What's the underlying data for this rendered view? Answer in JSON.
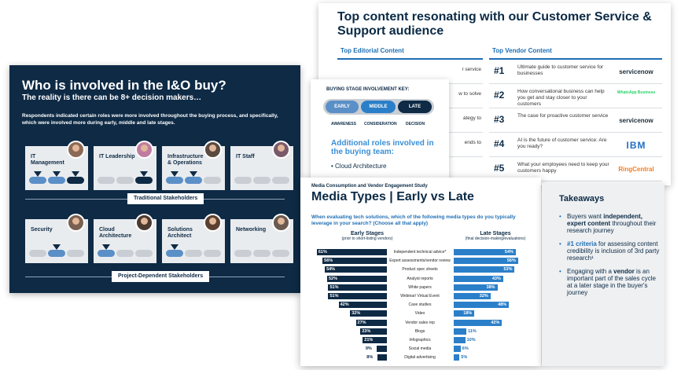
{
  "top_content": {
    "title": "Top content resonating with our Customer Service & Support audience",
    "editorial_heading": "Top Editorial Content",
    "vendor_heading": "Top Vendor Content",
    "editorial_rows": [
      "r service",
      "w to solve",
      "ategy to",
      "ends to",
      ""
    ],
    "vendor_rows": [
      {
        "num": "#1",
        "text": "Ultimate guide to customer service for businesses",
        "logo": "servicenow",
        "logo_color": "#1d2d3a"
      },
      {
        "num": "#2",
        "text": "How conversational business can help you get and stay closer to your customers",
        "logo": "WhatsApp Business",
        "logo_color": "#25d366"
      },
      {
        "num": "#3",
        "text": "The case for proactive customer service",
        "logo": "servicenow",
        "logo_color": "#1d2d3a"
      },
      {
        "num": "#4",
        "text": "AI is the future of customer service: Are you ready?",
        "logo": "IBM",
        "logo_color": "#1f70c1"
      },
      {
        "num": "#5",
        "text": "What your employees need to keep your customers happy",
        "logo": "RingCentral",
        "logo_color": "#f47c20"
      }
    ]
  },
  "who": {
    "title": "Who is involved in the I&O buy?",
    "subtitle": "The reality is there can be 8+ decision makers…",
    "description": "Respondents indicated certain roles were more involved throughout the buying process, and specifically, which were involved more during early, middle and late stages.",
    "traditional_label": "Traditional Stakeholders",
    "project_label": "Project-Dependent Stakeholders",
    "traditional_roles": [
      "IT Management",
      "IT Leadership",
      "Infrastructure & Operations",
      "IT Staff"
    ],
    "project_roles": [
      "Security",
      "Cloud Architecture",
      "Solutions Architect",
      "Networking"
    ]
  },
  "key": {
    "title": "BUYING STAGE INVOLVEMENT KEY:",
    "early": "EARLY",
    "middle": "MIDDLE",
    "late": "LATE",
    "awareness": "AWARENESS",
    "consideration": "CONSIDERATION",
    "decision": "DECISION",
    "roles_heading": "Additional roles involved in the buying team:",
    "role_item": "• Cloud Architecture"
  },
  "media": {
    "study": "Media Consumption and Vendor Engagement Study",
    "title": "Media Types | Early vs Late",
    "question": "When evaluating tech solutions, which of the following media types do you typically leverage in your search? (Choose all that apply)",
    "early_heading": "Early Stages",
    "early_sub": "(prior to short-listing vendors)",
    "late_heading": "Late Stages",
    "late_sub": "(final decision-making/evaluations)"
  },
  "chart_data": {
    "type": "bar",
    "categories": [
      "Independent technical advice*",
      "Expert assessments/vendor review",
      "Product spec sheets",
      "Analyst reports",
      "White papers",
      "Webinar/ Virtual Event",
      "Case studies",
      "Video",
      "Vendor sales rep",
      "Blogs",
      "Infographics",
      "Social media",
      "Digital advertising"
    ],
    "series": [
      {
        "name": "Early Stages",
        "values": [
          61,
          56,
          54,
          52,
          51,
          51,
          42,
          32,
          27,
          23,
          21,
          9,
          8
        ]
      },
      {
        "name": "Late Stages",
        "values": [
          54,
          56,
          53,
          43,
          38,
          32,
          48,
          18,
          42,
          11,
          10,
          6,
          5
        ]
      }
    ]
  },
  "takeaways": {
    "title": "Takeaways",
    "item1_pre": "Buyers want ",
    "item1_bold": "independent, expert content",
    "item1_post": " throughout their research journey",
    "item2_hl": "#1 criteria",
    "item2_post": " for assessing content credibility is inclusion of 3rd party research¹",
    "item3_pre": "Engaging with a ",
    "item3_bold": "vendor",
    "item3_post": " is an important part of the sales cycle at a later stage in the buyer's journey"
  }
}
